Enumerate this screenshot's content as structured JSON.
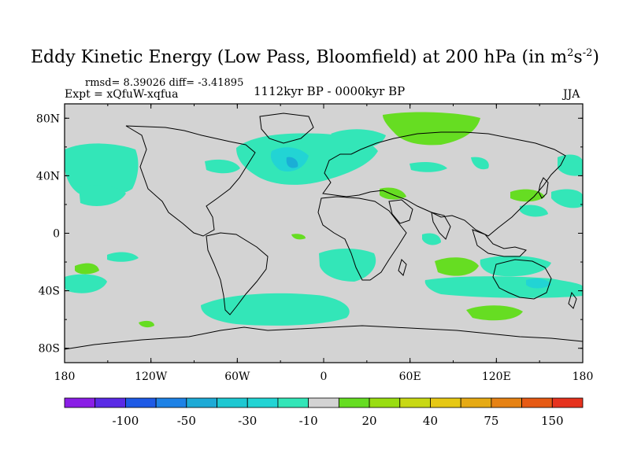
{
  "title": {
    "text": "Eddy Kinetic Energy (Low Pass, Bloomfield) at 200 hPa (in m",
    "sup1": "2",
    "mid": "s",
    "sup2": "-2",
    "close": ")"
  },
  "stats": "rmsd= 8.39026  diff= -3.41895",
  "expt": "Expt = xQfuW-xqfua",
  "period": "1112kyr BP - 0000kyr BP",
  "season": "JJA",
  "axes": {
    "lat_ticks": [
      "80N",
      "40N",
      "0",
      "40S",
      "80S"
    ],
    "lon_ticks": [
      "180",
      "120W",
      "60W",
      "0",
      "60E",
      "120E",
      "180"
    ]
  },
  "colors": {
    "land_ocean": "#d3d3d3",
    "coast": "#000000",
    "teal": "#33e6b8",
    "cyan_light": "#22d4d4",
    "cyan_dark": "#1aaed6",
    "green": "#66dd22"
  },
  "colorbar": {
    "colors": [
      "#8a1ee6",
      "#5a2ae6",
      "#1e5ae6",
      "#1e82e6",
      "#1eaad6",
      "#1ec8d2",
      "#22d4d4",
      "#33e6b8",
      "#d3d3d3",
      "#66dd22",
      "#99dd11",
      "#c8d814",
      "#e6c814",
      "#e6aa14",
      "#e68214",
      "#e65a14",
      "#e6321e"
    ],
    "labels": [
      "-100",
      "-50",
      "-30",
      "-10",
      "20",
      "40",
      "75",
      "150"
    ]
  }
}
